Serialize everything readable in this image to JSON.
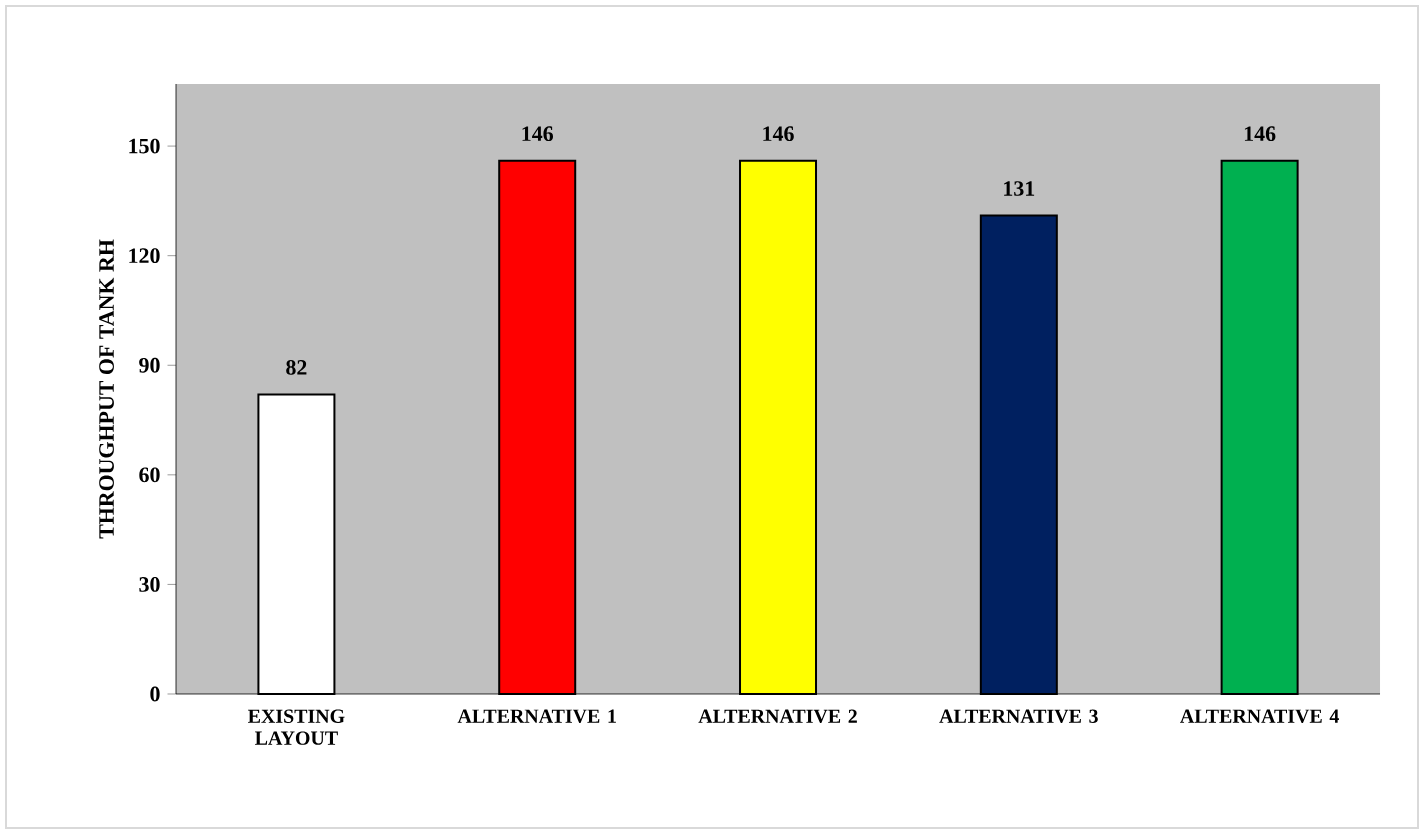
{
  "chart_data": {
    "type": "bar",
    "ylabel": "THROUGHPUT OF TANK RH",
    "categories": [
      "EXISTING LAYOUT",
      "ALTERNATIVE 1",
      "ALTERNATIVE 2",
      "ALTERNATIVE 3",
      "ALTERNATIVE 4"
    ],
    "values": [
      82,
      146,
      146,
      131,
      146
    ],
    "colors": [
      "#ffffff",
      "#ff0000",
      "#ffff00",
      "#002060",
      "#00b050"
    ],
    "ylim": [
      0,
      167
    ],
    "yticks": [
      0,
      30,
      60,
      90,
      120,
      150
    ],
    "data_labels": true,
    "grid": false
  }
}
